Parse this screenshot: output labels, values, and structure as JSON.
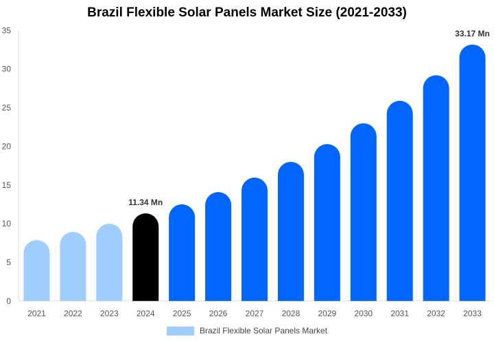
{
  "chart_data": {
    "type": "bar",
    "title": "Brazil Flexible Solar Panels Market Size (2021-2033)",
    "categories": [
      "2021",
      "2022",
      "2023",
      "2024",
      "2025",
      "2026",
      "2027",
      "2028",
      "2029",
      "2030",
      "2031",
      "2032",
      "2033"
    ],
    "series": [
      {
        "name": "Brazil Flexible Solar Panels Market",
        "values": [
          7.88,
          8.94,
          10.0,
          11.34,
          12.5,
          14.09,
          15.96,
          18.0,
          20.3,
          22.99,
          25.9,
          29.2,
          33.17
        ]
      }
    ],
    "data_labels": {
      "2024": "11.34 Mn",
      "2033": "33.17 Mn"
    },
    "ylim": [
      0,
      35
    ],
    "yticks": [
      0,
      5,
      10,
      15,
      20,
      25,
      30,
      35
    ],
    "xlabel": "",
    "ylabel": "",
    "grid": false,
    "legend_position": "bottom",
    "colors": {
      "historical": "#9fcdfd",
      "base_year": "#000000",
      "forecast": "#0066ff"
    }
  }
}
